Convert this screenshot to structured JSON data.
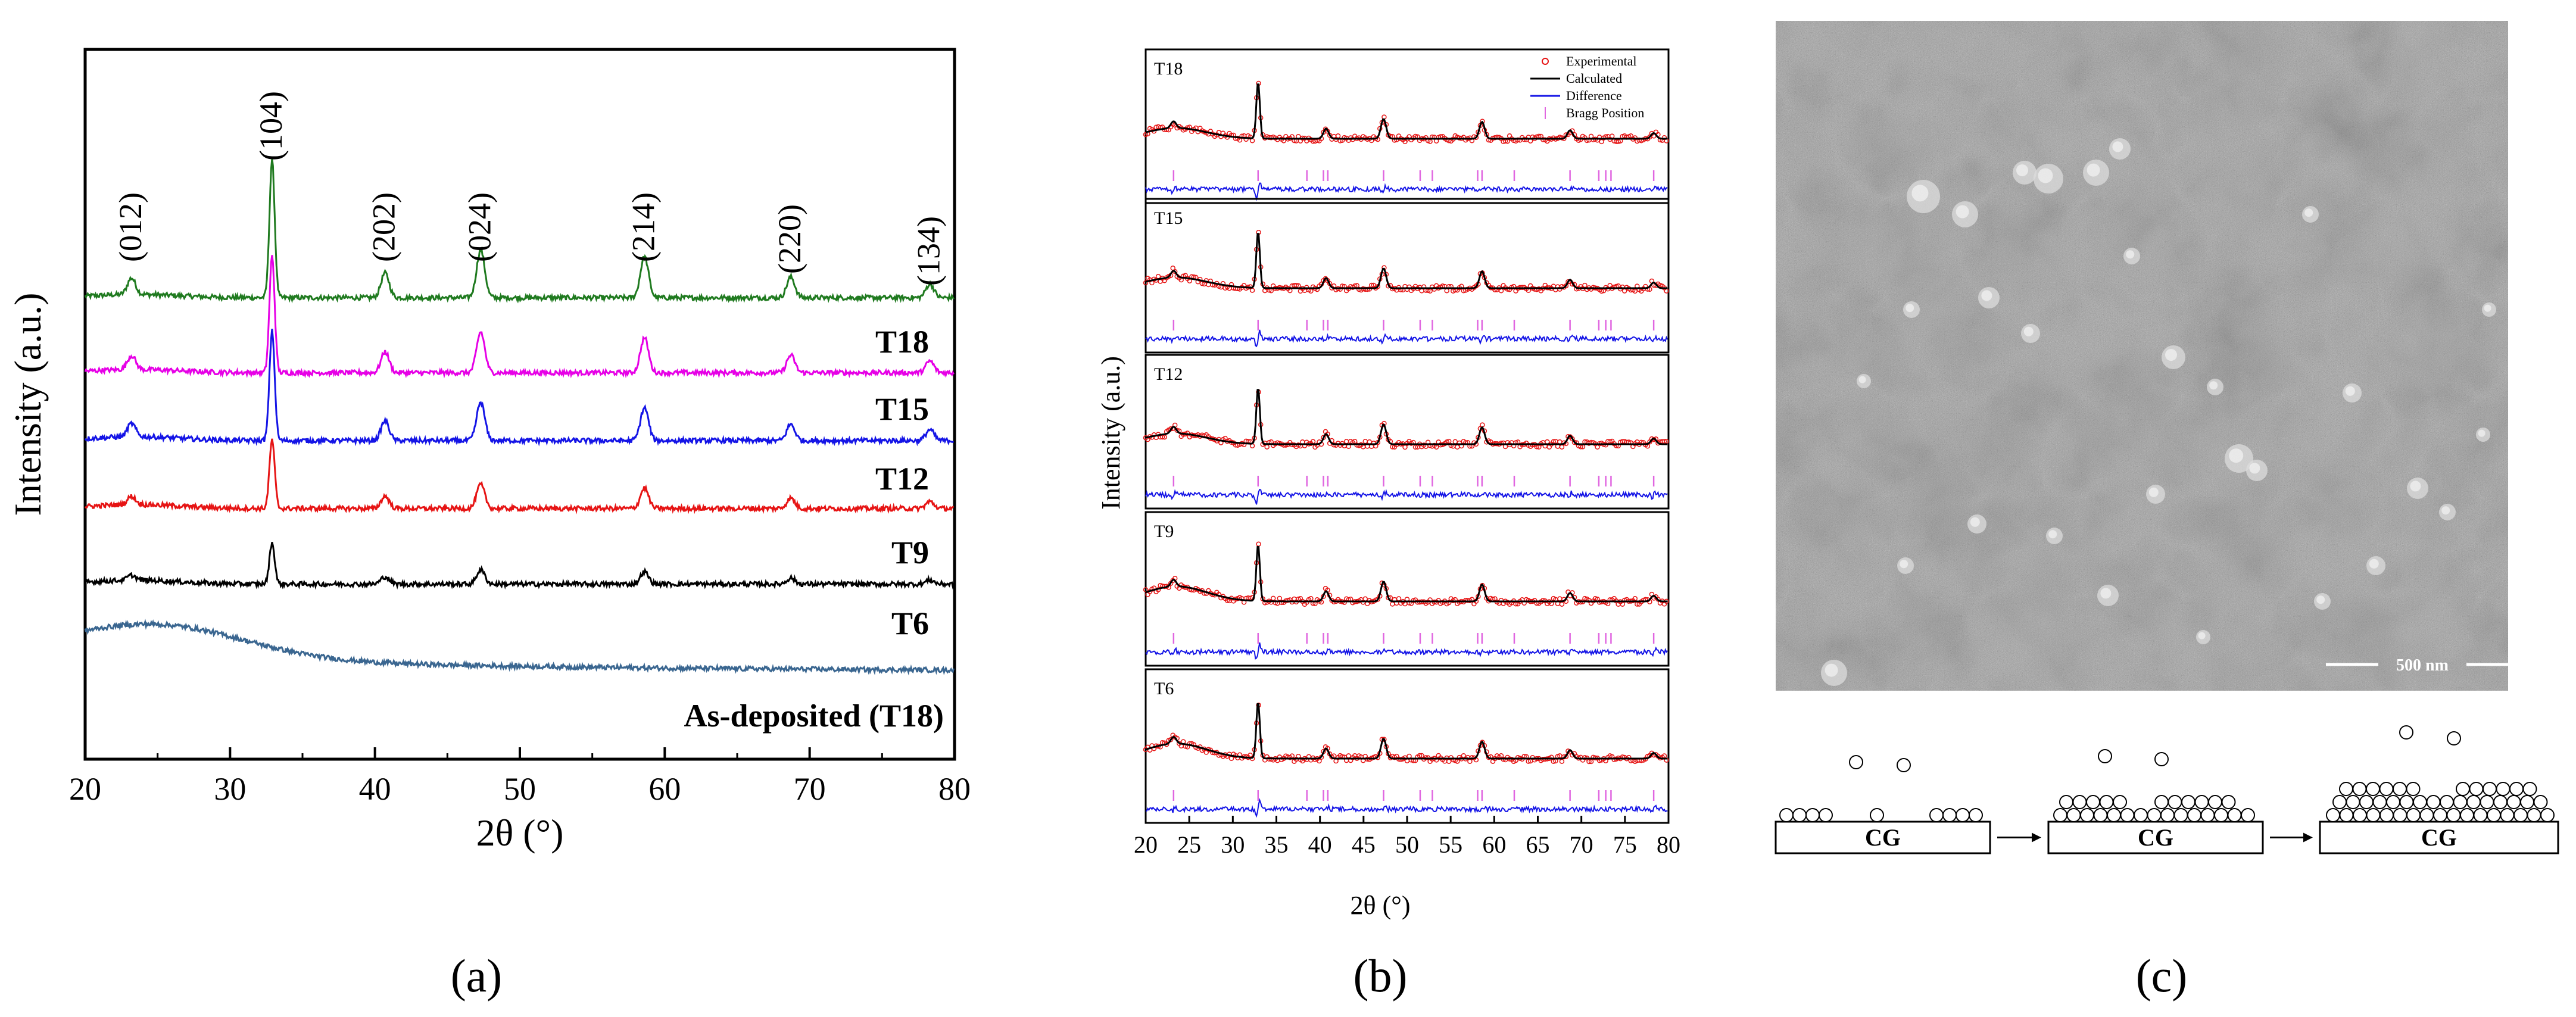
{
  "chart_data": [
    {
      "panel": "a",
      "type": "line",
      "title": "",
      "xlabel": "2θ (°)",
      "ylabel": "Intensity (a.u.)",
      "xlim": [
        20,
        80
      ],
      "xticks": [
        "20",
        "30",
        "40",
        "50",
        "60",
        "70",
        "80"
      ],
      "panel_label": "(a)",
      "peak_labels": [
        {
          "text": "(012)",
          "x": 23.2
        },
        {
          "text": "(104)",
          "x": 32.9
        },
        {
          "text": "(202)",
          "x": 40.7
        },
        {
          "text": "(024)",
          "x": 47.3
        },
        {
          "text": "(214)",
          "x": 58.6
        },
        {
          "text": "(220)",
          "x": 68.7
        },
        {
          "text": "(134)",
          "x": 78.3
        }
      ],
      "peak_positions": [
        23.2,
        32.9,
        40.7,
        47.3,
        58.6,
        68.7,
        78.3
      ],
      "series": [
        {
          "name": "T18",
          "label": "T18",
          "color": "#1f7a1f",
          "baseline": 6.0,
          "crystalline": 1.0,
          "hump": 0.25
        },
        {
          "name": "T15",
          "label": "T15",
          "color": "#e600e6",
          "baseline": 5.0,
          "crystalline": 0.85,
          "hump": 0.25
        },
        {
          "name": "T12",
          "label": "T12",
          "color": "#1414e6",
          "baseline": 4.0,
          "crystalline": 0.8,
          "hump": 0.3
        },
        {
          "name": "T9",
          "label": "T9",
          "color": "#e61414",
          "baseline": 3.0,
          "crystalline": 0.5,
          "hump": 0.3
        },
        {
          "name": "T6",
          "label": "T6",
          "color": "#000000",
          "baseline": 2.0,
          "crystalline": 0.3,
          "hump": 0.3
        },
        {
          "name": "As-deposited (T18)",
          "label": "As-deposited (T18)",
          "color": "#3a6690",
          "baseline": 1.0,
          "crystalline": 0.0,
          "hump": 1.0
        }
      ]
    },
    {
      "panel": "b",
      "type": "line",
      "xlabel": "2θ (°)",
      "ylabel": "Intensity (a.u.)",
      "xlim": [
        20,
        80
      ],
      "xticks": [
        "20",
        "25",
        "30",
        "35",
        "40",
        "45",
        "50",
        "55",
        "60",
        "65",
        "70",
        "75",
        "80"
      ],
      "panel_label": "(b)",
      "legend": {
        "position": "top-right",
        "entries": [
          {
            "label": "Experimental",
            "color": "#e61414",
            "style": "circle"
          },
          {
            "label": "Calculated",
            "color": "#000000",
            "style": "line"
          },
          {
            "label": "Difference",
            "color": "#1414e6",
            "style": "line"
          },
          {
            "label": "Bragg Position",
            "color": "#e066e0",
            "style": "tick"
          }
        ]
      },
      "bragg_positions": [
        23.2,
        32.9,
        38.5,
        40.4,
        40.9,
        47.3,
        51.5,
        52.9,
        58.1,
        58.6,
        62.3,
        68.7,
        72.0,
        72.8,
        73.4,
        78.3
      ],
      "subplots": [
        {
          "name": "T18",
          "label": "T18"
        },
        {
          "name": "T15",
          "label": "T15"
        },
        {
          "name": "T12",
          "label": "T12"
        },
        {
          "name": "T9",
          "label": "T9"
        },
        {
          "name": "T6",
          "label": "T6"
        }
      ]
    },
    {
      "panel": "c",
      "type": "image+diagram",
      "panel_label": "(c)",
      "scale_bar": "500 nm",
      "substrate_label": "CG",
      "stages": [
        "CG",
        "CG",
        "CG"
      ]
    }
  ]
}
